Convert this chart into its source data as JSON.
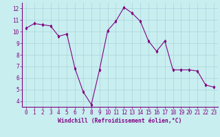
{
  "x": [
    0,
    1,
    2,
    3,
    4,
    5,
    6,
    7,
    8,
    9,
    10,
    11,
    12,
    13,
    14,
    15,
    16,
    17,
    18,
    19,
    20,
    21,
    22,
    23
  ],
  "y": [
    10.3,
    10.7,
    10.6,
    10.5,
    9.6,
    9.8,
    6.8,
    4.8,
    3.7,
    6.7,
    10.1,
    10.9,
    12.1,
    11.6,
    10.9,
    9.2,
    8.3,
    9.2,
    6.7,
    6.7,
    6.7,
    6.6,
    5.4,
    5.2
  ],
  "line_color": "#800080",
  "marker": "d",
  "marker_size": 2.5,
  "bg_color": "#c8eef0",
  "grid_color": "#aad4d8",
  "xlabel": "Windchill (Refroidissement éolien,°C)",
  "xlabel_color": "#800080",
  "tick_color": "#800080",
  "ylim": [
    3.5,
    12.5
  ],
  "xlim": [
    -0.5,
    23.5
  ],
  "yticks": [
    4,
    5,
    6,
    7,
    8,
    9,
    10,
    11,
    12
  ],
  "xticks": [
    0,
    1,
    2,
    3,
    4,
    5,
    6,
    7,
    8,
    9,
    10,
    11,
    12,
    13,
    14,
    15,
    16,
    17,
    18,
    19,
    20,
    21,
    22,
    23
  ],
  "tick_fontsize": 5.5,
  "xlabel_fontsize": 5.8
}
